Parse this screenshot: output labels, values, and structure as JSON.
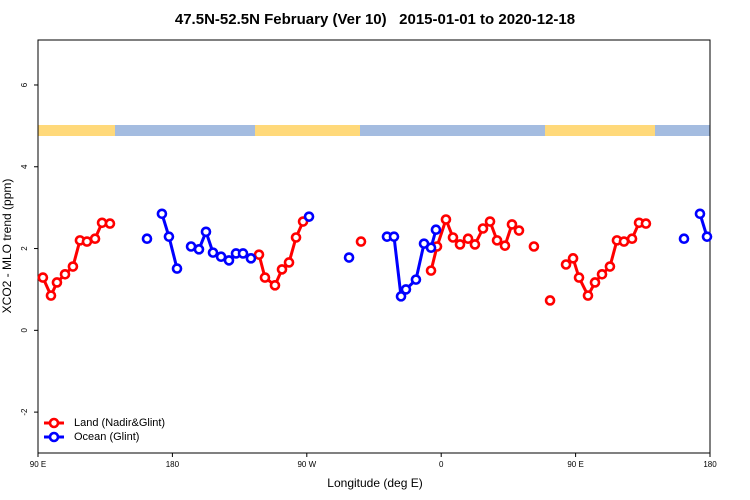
{
  "chart_data": {
    "type": "line",
    "title": "47.5N-52.5N February (Ver 10)   2015-01-01 to 2020-12-18",
    "x_label": "Longitude (deg E)",
    "y_label": "XCO2 - MLO trend (ppm)",
    "xlim": [
      90,
      540
    ],
    "xticks": [
      {
        "value": 90,
        "label": "90 E"
      },
      180,
      {
        "value": 270,
        "label": "90 W"
      },
      {
        "value": 360,
        "label": "0"
      },
      {
        "value": 450,
        "label": "90 E"
      },
      {
        "value": 540,
        "label": "180"
      }
    ],
    "ylim": [
      -3,
      7.1
    ],
    "yticks": [
      -2,
      0,
      2,
      4,
      6
    ],
    "legend": "bottom-left",
    "series": [
      {
        "name": "Land (Nadir&Glint)",
        "color": "#ff0000",
        "x": [
          93.3,
          98.7,
          102.7,
          108.1,
          113.4,
          118.1,
          122.8,
          128.2,
          132.9,
          138.2,
          null,
          238.0,
          242.0,
          248.7,
          253.4,
          258.1,
          262.8,
          267.5,
          null,
          306.3,
          null,
          353.2,
          357.2,
          363.2,
          367.9,
          372.6,
          378.0,
          382.6,
          388.0,
          392.7,
          397.4,
          402.7,
          407.4,
          412.1,
          null,
          422.1,
          null,
          432.9,
          null,
          443.6,
          448.3,
          452.3,
          458.3,
          463.0,
          467.7,
          473.0,
          477.7,
          482.4,
          487.8,
          492.5,
          497.1
        ],
        "values": [
          1.29,
          0.85,
          1.17,
          1.37,
          1.56,
          2.2,
          2.17,
          2.24,
          2.63,
          2.61,
          null,
          1.85,
          1.29,
          1.1,
          1.49,
          1.66,
          2.27,
          2.66,
          null,
          2.17,
          null,
          1.46,
          2.05,
          2.71,
          2.27,
          2.1,
          2.24,
          2.1,
          2.49,
          2.66,
          2.2,
          2.07,
          2.59,
          2.44,
          null,
          2.05,
          null,
          0.73,
          null,
          1.61,
          1.76,
          1.29,
          0.85,
          1.17,
          1.37,
          1.56,
          2.2,
          2.17,
          2.24,
          2.63,
          2.61
        ]
      },
      {
        "name": "Ocean (Glint)",
        "color": "#0000ff",
        "x": [
          163.0,
          null,
          173.0,
          177.7,
          183.1,
          null,
          192.5,
          197.8,
          202.5,
          207.2,
          212.6,
          217.9,
          222.6,
          227.3,
          232.6,
          null,
          271.5,
          null,
          298.3,
          null,
          323.7,
          328.4,
          333.1,
          336.4,
          343.1,
          348.5,
          353.2,
          356.5,
          null,
          522.6,
          null,
          533.3,
          538.0
        ],
        "values": [
          2.24,
          null,
          2.85,
          2.29,
          1.51,
          null,
          2.05,
          1.98,
          2.41,
          1.9,
          1.8,
          1.71,
          1.88,
          1.88,
          1.76,
          null,
          2.78,
          null,
          1.78,
          null,
          2.29,
          2.29,
          0.83,
          1.0,
          1.24,
          2.12,
          2.02,
          2.46,
          null,
          2.24,
          null,
          2.85,
          2.29
        ]
      }
    ]
  }
}
